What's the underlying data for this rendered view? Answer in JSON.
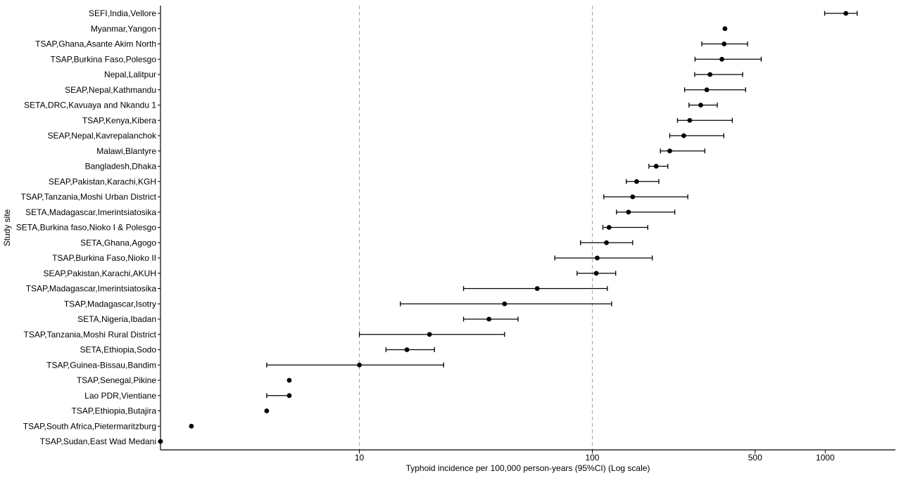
{
  "chart_data": {
    "type": "scatter",
    "subtype": "forest-plot",
    "title": "",
    "xlabel": "Typhoid incidence per 100,000 person-years (95%CI) (Log scale)",
    "ylabel": "Study site",
    "x_scale": "log10",
    "xlim": [
      1.4,
      2000
    ],
    "x_ticks": [
      10,
      100,
      500,
      1000
    ],
    "x_tick_labels": [
      "10",
      "100",
      "500",
      "1000"
    ],
    "gridlines_at": [
      10,
      100
    ],
    "grid": "dashed vertical at 10 and 100",
    "legend": "none",
    "series": [
      {
        "sites": [
          "SEFI,India,Vellore",
          "Myanmar,Yangon",
          "TSAP,Ghana,Asante Akim North",
          "TSAP,Burkina Faso,Polesgo",
          "Nepal,Lalitpur",
          "SEAP,Nepal,Kathmandu",
          "SETA,DRC,Kavuaya and Nkandu 1",
          "TSAP,Kenya,Kibera",
          "SEAP,Nepal,Kavrepalanchok",
          "Malawi,Blantyre",
          "Bangladesh,Dhaka",
          "SEAP,Pakistan,Karachi,KGH",
          "TSAP,Tanzania,Moshi Urban District",
          "SETA,Madagascar,Imerintsiatosika",
          "SETA,Burkina faso,Nioko I & Polesgo",
          "SETA,Ghana,Agogo",
          "TSAP,Burkina Faso,Nioko II",
          "SEAP,Pakistan,Karachi,AKUH",
          "TSAP,Madagascar,Imerintsiatosika",
          "TSAP,Madagascar,Isotry",
          "SETA,Nigeria,Ibadan",
          "TSAP,Tanzania,Moshi Rural District",
          "SETA,Ethiopia,Sodo",
          "TSAP,Guinea-Bissau,Bandim",
          "TSAP,Senegal,Pikine",
          "Lao PDR,Vientiane",
          "TSAP,Ethiopia,Butajira",
          "TSAP,South Africa,Pietermaritzburg",
          "TSAP,Sudan,East Wad Medani"
        ],
        "estimate": [
          1226,
          371,
          368,
          360,
          320,
          310,
          292,
          262,
          247,
          215,
          188,
          155,
          149,
          143,
          118,
          115,
          105,
          104,
          58,
          42,
          36,
          20,
          16,
          10,
          5,
          5,
          4,
          1.9,
          1.4
        ],
        "ci_lower": [
          994,
          null,
          295,
          276,
          275,
          249,
          260,
          232,
          215,
          196,
          175,
          140,
          112,
          127,
          111,
          89,
          69,
          86,
          28,
          15,
          28,
          10,
          13,
          4,
          null,
          4,
          null,
          null,
          null
        ],
        "ci_upper": [
          1371,
          null,
          464,
          531,
          442,
          455,
          344,
          399,
          367,
          304,
          211,
          193,
          257,
          226,
          173,
          149,
          181,
          126,
          116,
          121,
          48,
          42,
          21,
          23,
          null,
          5,
          null,
          null,
          null
        ]
      }
    ]
  }
}
